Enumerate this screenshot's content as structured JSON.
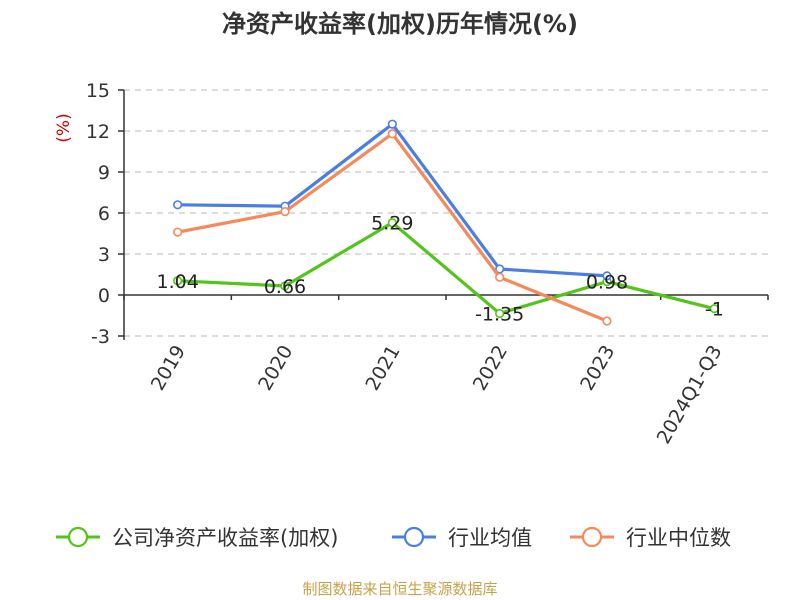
{
  "chart_data": {
    "type": "line",
    "title": "净资产收益率(加权)历年情况(%)",
    "ylabel": "(%)",
    "xlabel": "",
    "categories": [
      "2019",
      "2020",
      "2021",
      "2022",
      "2023",
      "2024Q1-Q3"
    ],
    "yticks": [
      "15",
      "12",
      "9",
      "6",
      "3",
      "0",
      "-3"
    ],
    "ylim": [
      -3,
      15
    ],
    "grid": true,
    "legend_position": "bottom",
    "series": [
      {
        "name": "公司净资产收益率(加权)",
        "color": "#52c41a",
        "values": [
          1.04,
          0.66,
          5.29,
          -1.35,
          0.98,
          -1
        ],
        "labels": [
          "1.04",
          "0.66",
          "5.29",
          "-1.35",
          "0.98",
          "-1"
        ]
      },
      {
        "name": "行业均值",
        "color": "#4a7ee0",
        "values": [
          6.6,
          6.5,
          12.5,
          1.9,
          1.4,
          null
        ]
      },
      {
        "name": "行业中位数",
        "color": "#f5895b",
        "values": [
          4.6,
          6.1,
          11.8,
          1.3,
          -1.9,
          null
        ]
      }
    ]
  },
  "footer": {
    "source": "制图数据来自恒生聚源数据库"
  }
}
